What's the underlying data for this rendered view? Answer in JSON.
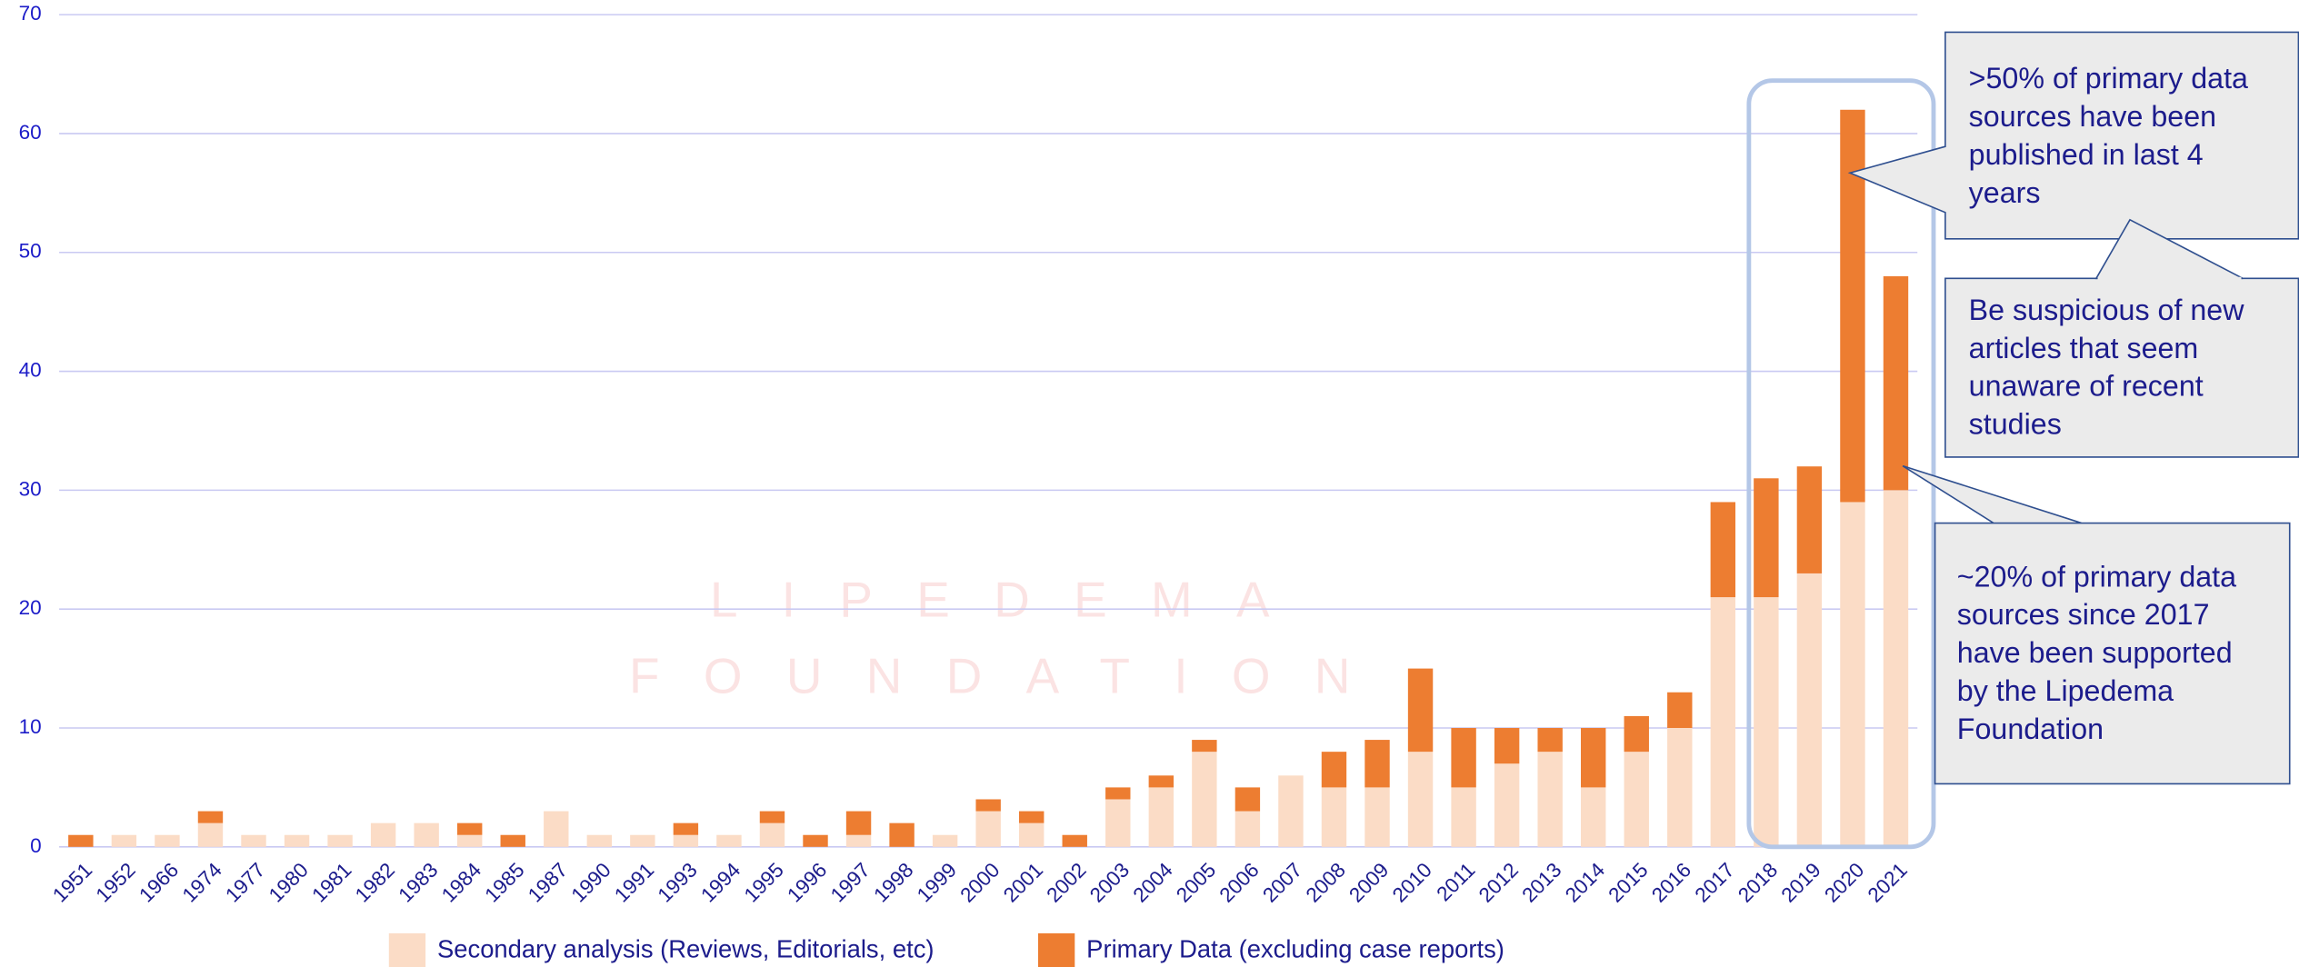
{
  "chart_data": {
    "type": "stacked_bar",
    "categories": [
      "1951",
      "1952",
      "1966",
      "1974",
      "1977",
      "1980",
      "1981",
      "1982",
      "1983",
      "1984",
      "1985",
      "1987",
      "1990",
      "1991",
      "1993",
      "1994",
      "1995",
      "1996",
      "1997",
      "1998",
      "1999",
      "2000",
      "2001",
      "2002",
      "2003",
      "2004",
      "2005",
      "2006",
      "2007",
      "2008",
      "2009",
      "2010",
      "2011",
      "2012",
      "2013",
      "2014",
      "2015",
      "2016",
      "2017",
      "2018",
      "2019",
      "2020",
      "2021"
    ],
    "series": [
      {
        "name": "Secondary analysis (Reviews, Editorials, etc)",
        "color": "#fbdcc6",
        "values": [
          0,
          1,
          1,
          2,
          1,
          1,
          1,
          2,
          2,
          1,
          0,
          3,
          1,
          1,
          1,
          1,
          2,
          0,
          1,
          0,
          1,
          3,
          2,
          0,
          4,
          5,
          8,
          3,
          6,
          5,
          5,
          8,
          5,
          7,
          8,
          5,
          8,
          10,
          21,
          21,
          23,
          29,
          30
        ]
      },
      {
        "name": "Primary Data (excluding case reports)",
        "color": "#ed7d31",
        "values": [
          1,
          0,
          0,
          1,
          0,
          0,
          0,
          0,
          0,
          1,
          1,
          0,
          0,
          0,
          1,
          0,
          1,
          1,
          2,
          2,
          0,
          1,
          1,
          1,
          1,
          1,
          1,
          2,
          0,
          3,
          4,
          7,
          5,
          3,
          2,
          5,
          3,
          3,
          8,
          10,
          9,
          33,
          18
        ]
      }
    ],
    "ylim": [
      0,
      70
    ],
    "yticks": [
      0,
      10,
      20,
      30,
      40,
      50,
      60,
      70
    ],
    "grid": true,
    "watermark": [
      "LIPEDEMA",
      "FOUNDATION"
    ],
    "annotations": [
      {
        "lines": [
          ">50% of primary data",
          "sources have been",
          "published in last 4",
          "years"
        ]
      },
      {
        "lines": [
          "Be suspicious of new",
          "articles that seem",
          "unaware of recent",
          "studies"
        ]
      },
      {
        "lines": [
          "~20% of primary data",
          "sources since 2017",
          "have been supported",
          "by the Lipedema",
          "Foundation"
        ]
      }
    ]
  }
}
